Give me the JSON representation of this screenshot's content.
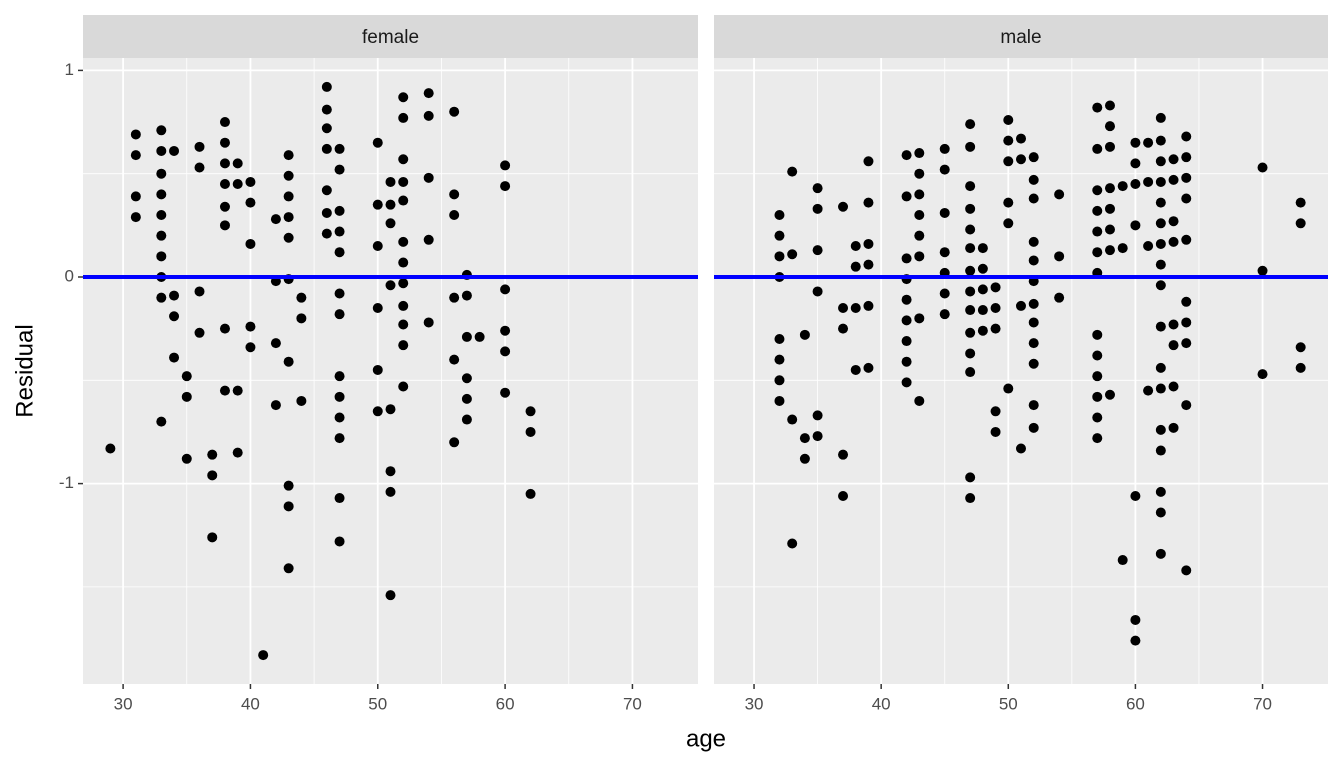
{
  "chart_data": [
    {
      "type": "scatter",
      "title": "female",
      "xlabel": "age",
      "ylabel": "Residual",
      "color": "#000000",
      "xlim": [
        26.85,
        75.15
      ],
      "ylim": [
        -1.97,
        1.06
      ],
      "xticks": [
        30,
        40,
        50,
        60,
        70
      ],
      "yticks": [
        -1,
        0,
        1
      ],
      "minor_xticks": [
        35,
        45,
        55,
        65
      ],
      "minor_yticks": [
        -1.5,
        -0.5,
        0.5
      ],
      "grid": true,
      "hline": {
        "value": 0,
        "color": "#0000ff"
      },
      "x": [
        29,
        31,
        31,
        31,
        31,
        33,
        33,
        33,
        33,
        33,
        33,
        33,
        33,
        33,
        33,
        34,
        34,
        34,
        34,
        35,
        35,
        35,
        36,
        36,
        36,
        36,
        37,
        37,
        37,
        38,
        38,
        38,
        38,
        38,
        38,
        38,
        38,
        39,
        39,
        39,
        39,
        40,
        40,
        40,
        40,
        40,
        41,
        42,
        42,
        42,
        42,
        43,
        43,
        43,
        43,
        43,
        43,
        43,
        43,
        43,
        43,
        44,
        44,
        44,
        46,
        46,
        46,
        46,
        46,
        46,
        46,
        47,
        47,
        47,
        47,
        47,
        47,
        47,
        47,
        47,
        47,
        47,
        47,
        47,
        50,
        50,
        50,
        50,
        50,
        50,
        51,
        51,
        51,
        51,
        51,
        51,
        51,
        51,
        52,
        52,
        52,
        52,
        52,
        52,
        52,
        52,
        52,
        52,
        52,
        52,
        54,
        54,
        54,
        54,
        54,
        56,
        56,
        56,
        56,
        56,
        56,
        57,
        57,
        57,
        57,
        57,
        57,
        58,
        60,
        60,
        60,
        60,
        60,
        60,
        62,
        62,
        62
      ],
      "y": [
        -0.83,
        0.69,
        0.59,
        0.39,
        0.29,
        0.71,
        0.61,
        0.5,
        0.4,
        0.3,
        0.2,
        0.1,
        0.0,
        -0.1,
        -0.7,
        0.61,
        -0.09,
        -0.19,
        -0.39,
        -0.48,
        -0.58,
        -0.88,
        0.63,
        0.53,
        -0.07,
        -0.27,
        -0.86,
        -0.96,
        -1.26,
        0.75,
        0.65,
        0.55,
        0.45,
        0.34,
        0.25,
        -0.25,
        -0.55,
        0.55,
        0.45,
        -0.55,
        -0.85,
        0.46,
        0.36,
        0.16,
        -0.24,
        -0.34,
        -1.83,
        0.28,
        -0.02,
        -0.32,
        -0.62,
        0.59,
        0.49,
        0.39,
        0.29,
        0.19,
        -0.01,
        -0.41,
        -1.01,
        -1.11,
        -1.41,
        -0.1,
        -0.2,
        -0.6,
        0.92,
        0.81,
        0.72,
        0.62,
        0.42,
        0.31,
        0.21,
        0.62,
        0.52,
        0.32,
        0.22,
        0.12,
        -0.08,
        -0.18,
        -0.48,
        -0.58,
        -0.68,
        -0.78,
        -1.07,
        -1.28,
        0.65,
        0.35,
        0.15,
        -0.15,
        -0.45,
        -0.65,
        0.46,
        0.35,
        0.26,
        -0.04,
        -0.64,
        -0.94,
        -1.04,
        -1.54,
        0.87,
        0.77,
        0.57,
        0.46,
        0.37,
        0.17,
        0.07,
        -0.03,
        -0.14,
        -0.23,
        -0.33,
        -0.53,
        0.89,
        0.78,
        0.48,
        0.18,
        -0.22,
        0.8,
        0.4,
        0.3,
        -0.1,
        -0.4,
        -0.8,
        0.01,
        -0.09,
        -0.29,
        -0.49,
        -0.59,
        -0.69,
        -0.29,
        0.54,
        0.44,
        -0.06,
        -0.26,
        -0.36,
        -0.56,
        -0.65,
        -0.75,
        -1.05
      ]
    },
    {
      "type": "scatter",
      "title": "male",
      "color": "#000000",
      "xlim": [
        26.85,
        75.15
      ],
      "ylim": [
        -1.97,
        1.06
      ],
      "xticks": [
        30,
        40,
        50,
        60,
        70
      ],
      "yticks": [
        -1,
        0,
        1
      ],
      "minor_xticks": [
        35,
        45,
        55,
        65
      ],
      "minor_yticks": [
        -1.5,
        -0.5,
        0.5
      ],
      "grid": true,
      "hline": {
        "value": 0,
        "color": "#0000ff"
      },
      "x": [
        32,
        32,
        32,
        32,
        32,
        32,
        32,
        32,
        33,
        33,
        33,
        33,
        34,
        34,
        34,
        35,
        35,
        35,
        35,
        35,
        35,
        37,
        37,
        37,
        37,
        37,
        38,
        38,
        38,
        38,
        39,
        39,
        39,
        39,
        39,
        39,
        42,
        42,
        42,
        42,
        42,
        42,
        42,
        42,
        42,
        43,
        43,
        43,
        43,
        43,
        43,
        43,
        43,
        45,
        45,
        45,
        45,
        45,
        45,
        45,
        47,
        47,
        47,
        47,
        47,
        47,
        47,
        47,
        47,
        47,
        47,
        47,
        47,
        47,
        48,
        48,
        48,
        48,
        48,
        49,
        49,
        49,
        49,
        49,
        50,
        50,
        50,
        50,
        50,
        50,
        51,
        51,
        51,
        51,
        52,
        52,
        52,
        52,
        52,
        52,
        52,
        52,
        52,
        52,
        52,
        52,
        54,
        54,
        54,
        57,
        57,
        57,
        57,
        57,
        57,
        57,
        57,
        57,
        57,
        57,
        57,
        57,
        58,
        58,
        58,
        58,
        58,
        58,
        58,
        58,
        59,
        59,
        59,
        60,
        60,
        60,
        60,
        60,
        60,
        60,
        61,
        61,
        61,
        61,
        62,
        62,
        62,
        62,
        62,
        62,
        62,
        62,
        62,
        62,
        62,
        62,
        62,
        62,
        62,
        62,
        62,
        63,
        63,
        63,
        63,
        63,
        63,
        63,
        63,
        64,
        64,
        64,
        64,
        64,
        64,
        64,
        64,
        64,
        64,
        70,
        70,
        70,
        73,
        73,
        73,
        73
      ],
      "y": [
        0.3,
        0.2,
        0.1,
        0.0,
        -0.3,
        -0.4,
        -0.5,
        -0.6,
        0.51,
        0.11,
        -0.69,
        -1.29,
        -0.28,
        -0.78,
        -0.88,
        0.43,
        0.33,
        0.13,
        -0.07,
        -0.67,
        -0.77,
        0.34,
        -0.15,
        -0.25,
        -0.86,
        -1.06,
        0.15,
        0.05,
        -0.15,
        -0.45,
        0.56,
        0.36,
        0.16,
        0.06,
        -0.14,
        -0.44,
        0.59,
        0.39,
        0.09,
        -0.01,
        -0.11,
        -0.21,
        -0.31,
        -0.41,
        -0.51,
        0.6,
        0.5,
        0.4,
        0.3,
        0.2,
        0.1,
        -0.2,
        -0.6,
        0.62,
        0.52,
        0.31,
        0.12,
        0.02,
        -0.08,
        -0.18,
        0.74,
        0.63,
        0.44,
        0.33,
        0.23,
        0.14,
        0.03,
        -0.07,
        -0.16,
        -0.27,
        -0.37,
        -0.46,
        -0.97,
        -1.07,
        0.14,
        0.04,
        -0.06,
        -0.16,
        -0.26,
        -0.05,
        -0.15,
        -0.25,
        -0.65,
        -0.75,
        0.76,
        0.66,
        0.56,
        0.36,
        0.26,
        -0.54,
        0.67,
        0.57,
        -0.14,
        -0.83,
        0.58,
        0.47,
        0.38,
        0.17,
        0.08,
        -0.02,
        -0.13,
        -0.22,
        -0.32,
        -0.42,
        -0.62,
        -0.73,
        0.4,
        0.1,
        -0.1,
        0.82,
        0.62,
        0.42,
        0.32,
        0.22,
        0.12,
        0.02,
        -0.28,
        -0.38,
        -0.48,
        -0.58,
        -0.68,
        -0.78,
        0.83,
        0.73,
        0.63,
        0.43,
        0.33,
        0.23,
        0.13,
        -0.57,
        0.44,
        0.14,
        -1.37,
        0.65,
        0.55,
        0.45,
        0.25,
        -1.06,
        -1.66,
        -1.76,
        0.65,
        0.46,
        0.15,
        -0.55,
        0.77,
        0.66,
        0.56,
        0.46,
        0.36,
        0.26,
        0.16,
        0.06,
        -0.04,
        -0.24,
        -0.44,
        -0.54,
        -0.74,
        -0.84,
        -1.04,
        -1.14,
        -1.34,
        0.57,
        0.47,
        0.27,
        0.17,
        -0.23,
        -0.33,
        -0.53,
        -0.73,
        0.68,
        0.58,
        0.48,
        0.38,
        0.18,
        -0.12,
        -0.22,
        -0.32,
        -0.62,
        -1.42,
        0.53,
        0.03,
        -0.47,
        0.36,
        0.26,
        -0.34,
        -0.44
      ]
    }
  ]
}
